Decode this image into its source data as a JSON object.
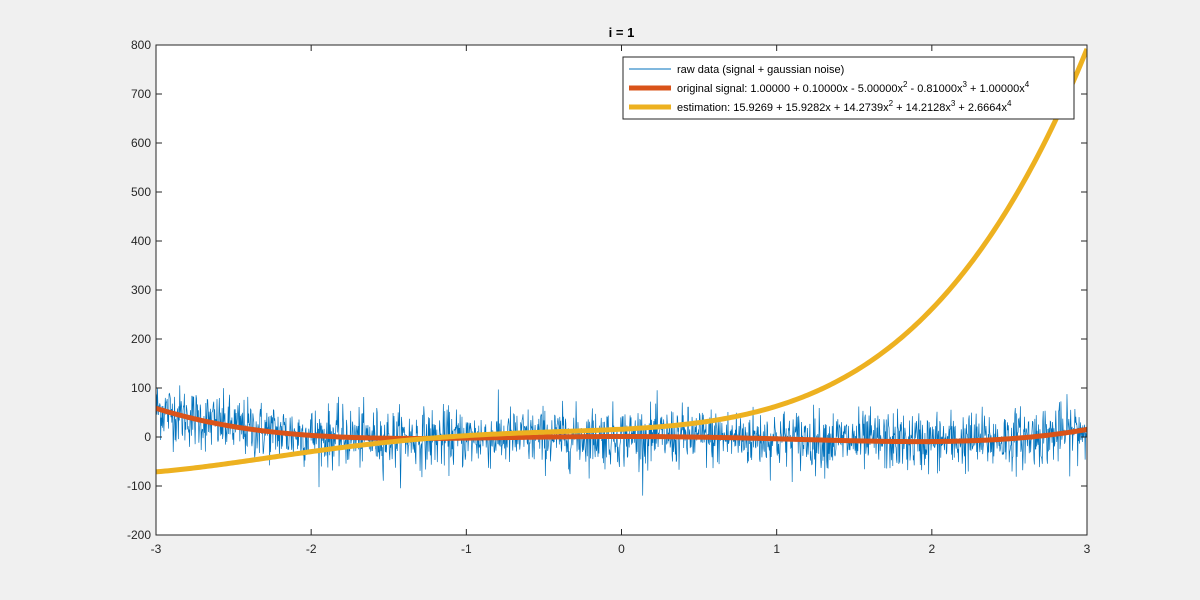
{
  "chart_data": {
    "type": "line",
    "title": "i = 1",
    "xlabel": "",
    "ylabel": "",
    "xlim": [
      -3,
      3
    ],
    "ylim": [
      -200,
      800
    ],
    "xticks": [
      -3,
      -2,
      -1,
      0,
      1,
      2,
      3
    ],
    "yticks": [
      -200,
      -100,
      0,
      100,
      200,
      300,
      400,
      500,
      600,
      700,
      800
    ],
    "xtick_labels": [
      "-3",
      "-2",
      "-1",
      "0",
      "1",
      "2",
      "3"
    ],
    "ytick_labels": [
      "-200",
      "-100",
      "0",
      "100",
      "200",
      "300",
      "400",
      "500",
      "600",
      "700",
      "800"
    ],
    "grid": false,
    "legend_position": "top-right",
    "series": [
      {
        "name": "raw data   (signal + gaussian noise)",
        "style": "thin-line",
        "color": "#0072bd",
        "description": "noisy samples of original signal",
        "noise_sd": 30,
        "x_range": [
          -3,
          3
        ],
        "n_points": 2000
      },
      {
        "name": "original signal: 1.00000 + 0.10000x - 5.00000x^2 - 0.81000x^3 + 1.00000x^4",
        "style": "thick-line",
        "color": "#d95319",
        "coefficients": [
          1.0,
          0.1,
          -5.0,
          -0.81,
          1.0
        ]
      },
      {
        "name": "estimation:     15.9269 + 15.9282x + 14.2739x^2 + 14.2128x^3 + 2.6664x^4",
        "style": "thick-line",
        "color": "#edb120",
        "coefficients": [
          15.9269,
          15.9282,
          14.2739,
          14.2128,
          2.6664
        ]
      }
    ]
  },
  "legend": {
    "items": [
      {
        "parts": [
          {
            "t": "raw data   (signal + gaussian noise)"
          }
        ]
      },
      {
        "parts": [
          {
            "t": "original signal: 1.00000 + 0.10000x - 5.00000x"
          },
          {
            "t": "2",
            "sup": true
          },
          {
            "t": " - 0.81000x"
          },
          {
            "t": "3",
            "sup": true
          },
          {
            "t": " + 1.00000x"
          },
          {
            "t": "4",
            "sup": true
          }
        ]
      },
      {
        "parts": [
          {
            "t": "estimation:     15.9269 + 15.9282x + 14.2739x"
          },
          {
            "t": "2",
            "sup": true
          },
          {
            "t": " + 14.2128x"
          },
          {
            "t": "3",
            "sup": true
          },
          {
            "t": " + 2.6664x"
          },
          {
            "t": "4",
            "sup": true
          }
        ]
      }
    ]
  }
}
